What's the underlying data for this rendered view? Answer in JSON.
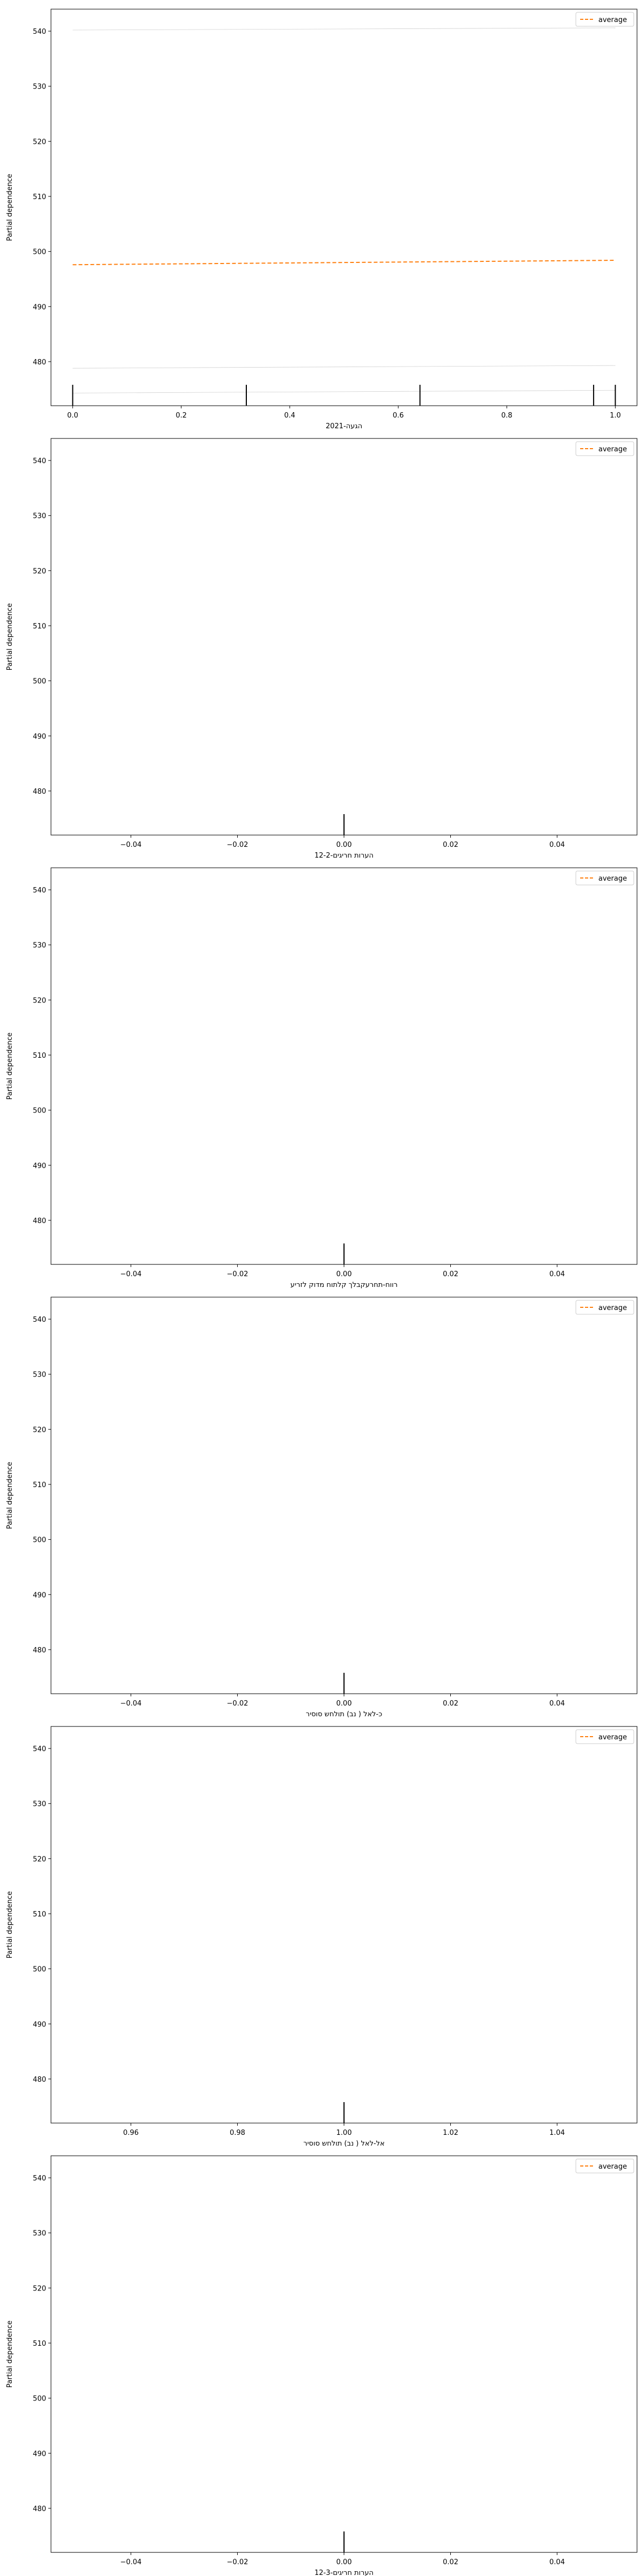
{
  "chart_data": [
    {
      "type": "line",
      "xlabel": "הגעה-2021",
      "ylabel": "Partial dependence",
      "xlim": [
        -0.04,
        1.04
      ],
      "ylim": [
        472,
        544
      ],
      "xticks": [
        0.0,
        0.2,
        0.4,
        0.6,
        0.8,
        1.0
      ],
      "xtick_labels": [
        "0.0",
        "0.2",
        "0.4",
        "0.6",
        "0.8",
        "1.0"
      ],
      "yticks": [
        480,
        490,
        500,
        510,
        520,
        530,
        540
      ],
      "ytick_labels": [
        "480",
        "490",
        "500",
        "510",
        "520",
        "530",
        "540"
      ],
      "legend": "top-right",
      "series": [
        {
          "name": "average",
          "style": "dashed",
          "color": "#ff7f0e",
          "x": [
            0.0,
            1.0
          ],
          "y": [
            497.6,
            498.4
          ]
        }
      ],
      "ice_lines": [
        {
          "x": [
            0.0,
            1.0
          ],
          "y": [
            540.2,
            540.6
          ]
        },
        {
          "x": [
            0.0,
            1.0
          ],
          "y": [
            478.8,
            479.3
          ]
        },
        {
          "x": [
            0.0,
            1.0
          ],
          "y": [
            474.3,
            474.8
          ]
        }
      ],
      "rug": [
        0.0,
        0.32,
        0.64,
        0.96,
        1.0
      ]
    },
    {
      "type": "line",
      "xlabel": "הערות חריגים-12-2",
      "ylabel": "Partial dependence",
      "xlim": [
        -0.055,
        0.055
      ],
      "ylim": [
        472,
        544
      ],
      "xticks": [
        -0.04,
        -0.02,
        0.0,
        0.02,
        0.04
      ],
      "xtick_labels": [
        "−0.04",
        "−0.02",
        "0.00",
        "0.02",
        "0.04"
      ],
      "yticks": [
        480,
        490,
        500,
        510,
        520,
        530,
        540
      ],
      "ytick_labels": [
        "480",
        "490",
        "500",
        "510",
        "520",
        "530",
        "540"
      ],
      "legend": "top-right",
      "series": [
        {
          "name": "average",
          "style": "dashed",
          "color": "#ff7f0e",
          "x": [],
          "y": []
        }
      ],
      "ice_lines": [],
      "rug": [
        0.0
      ]
    },
    {
      "type": "line",
      "xlabel": "רווח-תחרעקבלך קלתוח מדוק לזריע",
      "ylabel": "Partial dependence",
      "xlim": [
        -0.055,
        0.055
      ],
      "ylim": [
        472,
        544
      ],
      "xticks": [
        -0.04,
        -0.02,
        0.0,
        0.02,
        0.04
      ],
      "xtick_labels": [
        "−0.04",
        "−0.02",
        "0.00",
        "0.02",
        "0.04"
      ],
      "yticks": [
        480,
        490,
        500,
        510,
        520,
        530,
        540
      ],
      "ytick_labels": [
        "480",
        "490",
        "500",
        "510",
        "520",
        "530",
        "540"
      ],
      "legend": "top-right",
      "series": [
        {
          "name": "average",
          "style": "dashed",
          "color": "#ff7f0e",
          "x": [],
          "y": []
        }
      ],
      "ice_lines": [],
      "rug": [
        0.0
      ]
    },
    {
      "type": "line",
      "xlabel": "כ-לאל ( נב) תולחש סוסיר",
      "ylabel": "Partial dependence",
      "xlim": [
        -0.055,
        0.055
      ],
      "ylim": [
        472,
        544
      ],
      "xticks": [
        -0.04,
        -0.02,
        0.0,
        0.02,
        0.04
      ],
      "xtick_labels": [
        "−0.04",
        "−0.02",
        "0.00",
        "0.02",
        "0.04"
      ],
      "yticks": [
        480,
        490,
        500,
        510,
        520,
        530,
        540
      ],
      "ytick_labels": [
        "480",
        "490",
        "500",
        "510",
        "520",
        "530",
        "540"
      ],
      "legend": "top-right",
      "series": [
        {
          "name": "average",
          "style": "dashed",
          "color": "#ff7f0e",
          "x": [],
          "y": []
        }
      ],
      "ice_lines": [],
      "rug": [
        0.0
      ]
    },
    {
      "type": "line",
      "xlabel": "אל-לאל ( נב) תולחש סוסיר",
      "ylabel": "Partial dependence",
      "xlim": [
        0.945,
        1.055
      ],
      "ylim": [
        472,
        544
      ],
      "xticks": [
        0.96,
        0.98,
        1.0,
        1.02,
        1.04
      ],
      "xtick_labels": [
        "0.96",
        "0.98",
        "1.00",
        "1.02",
        "1.04"
      ],
      "yticks": [
        480,
        490,
        500,
        510,
        520,
        530,
        540
      ],
      "ytick_labels": [
        "480",
        "490",
        "500",
        "510",
        "520",
        "530",
        "540"
      ],
      "legend": "top-right",
      "series": [
        {
          "name": "average",
          "style": "dashed",
          "color": "#ff7f0e",
          "x": [],
          "y": []
        }
      ],
      "ice_lines": [],
      "rug": [
        1.0
      ]
    },
    {
      "type": "line",
      "xlabel": "הערות חריגים-12-3",
      "ylabel": "Partial dependence",
      "xlim": [
        -0.055,
        0.055
      ],
      "ylim": [
        472,
        544
      ],
      "xticks": [
        -0.04,
        -0.02,
        0.0,
        0.02,
        0.04
      ],
      "xtick_labels": [
        "−0.04",
        "−0.02",
        "0.00",
        "0.02",
        "0.04"
      ],
      "yticks": [
        480,
        490,
        500,
        510,
        520,
        530,
        540
      ],
      "ytick_labels": [
        "480",
        "490",
        "500",
        "510",
        "520",
        "530",
        "540"
      ],
      "legend": "top-right",
      "series": [
        {
          "name": "average",
          "style": "dashed",
          "color": "#ff7f0e",
          "x": [],
          "y": []
        }
      ],
      "ice_lines": [],
      "rug": [
        0.0
      ]
    }
  ]
}
